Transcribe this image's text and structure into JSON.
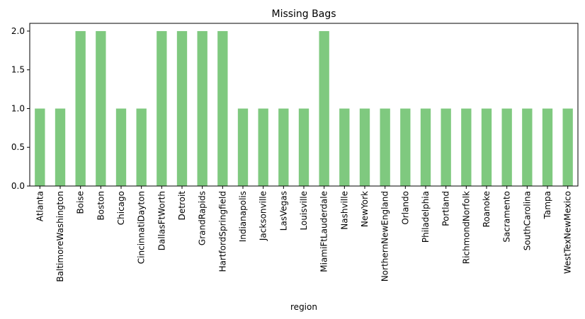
{
  "chart_data": {
    "type": "bar",
    "title": "Missing Bags",
    "xlabel": "region",
    "ylabel": "",
    "ylim": [
      0,
      2.1
    ],
    "yticks": [
      0.0,
      0.5,
      1.0,
      1.5,
      2.0
    ],
    "ytick_labels": [
      "0.0",
      "0.5",
      "1.0",
      "1.5",
      "2.0"
    ],
    "grid": false,
    "legend": "none",
    "bar_color": "#7fc97f",
    "categories": [
      "Atlanta",
      "BaltimoreWashington",
      "Boise",
      "Boston",
      "Chicago",
      "CincinnatiDayton",
      "DallasFtWorth",
      "Detroit",
      "GrandRapids",
      "HartfordSpringfield",
      "Indianapolis",
      "Jacksonville",
      "LasVegas",
      "Louisville",
      "MiamiFtLauderdale",
      "Nashville",
      "NewYork",
      "NorthernNewEngland",
      "Orlando",
      "Philadelphia",
      "Portland",
      "RichmondNorfolk",
      "Roanoke",
      "Sacramento",
      "SouthCarolina",
      "Tampa",
      "WestTexNewMexico"
    ],
    "values": [
      1,
      1,
      2,
      2,
      1,
      1,
      2,
      2,
      2,
      2,
      1,
      1,
      1,
      1,
      2,
      1,
      1,
      1,
      1,
      1,
      1,
      1,
      1,
      1,
      1,
      1,
      1
    ]
  }
}
